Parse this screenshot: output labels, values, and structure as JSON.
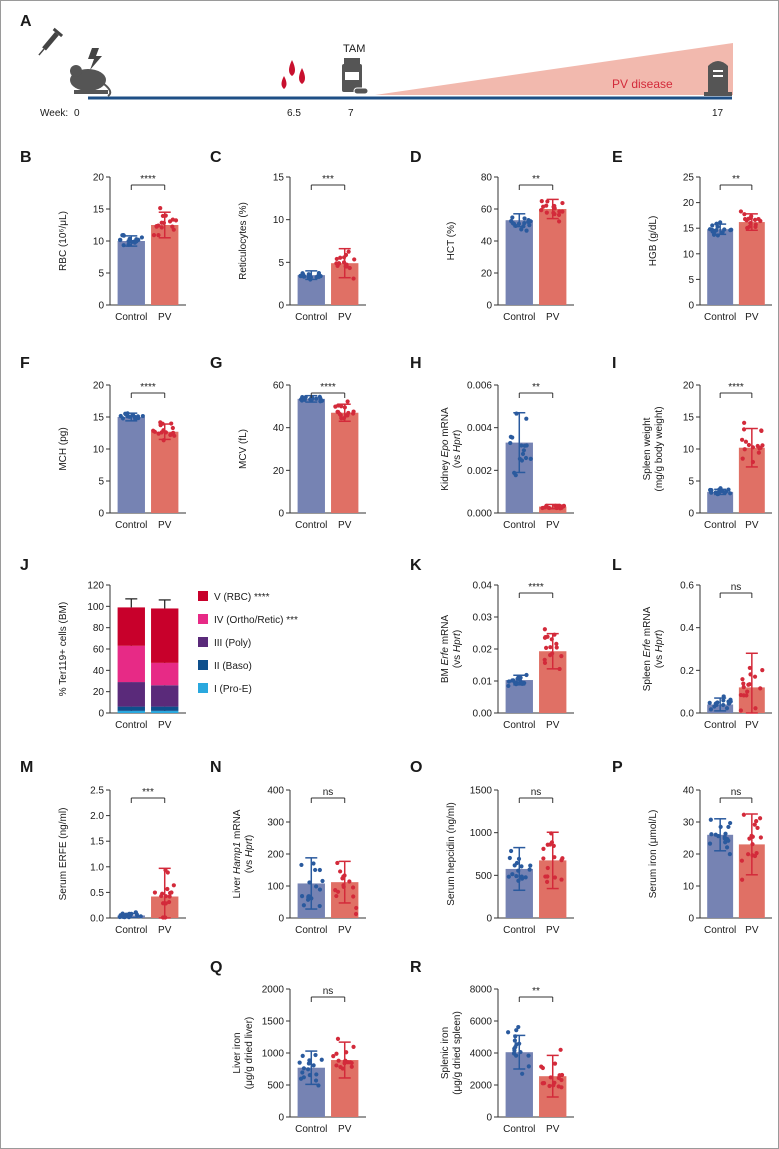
{
  "colors": {
    "control": "#7683b3",
    "pv": "#e07065",
    "control_dot": "#2a5a9e",
    "pv_dot": "#d32a3a",
    "axis": "#333333",
    "timeline": "#1e4f86",
    "wedge": "#f2b9ae",
    "stage_V": "#c8002b",
    "stage_IV": "#e72a86",
    "stage_III": "#5a2a7a",
    "stage_II": "#0e4f8c",
    "stage_I": "#2aa8de"
  },
  "timeline": {
    "label": "A",
    "week_prefix": "Week:",
    "weeks": [
      "0",
      "6.5",
      "7",
      "17"
    ],
    "tam_label": "TAM",
    "disease_label": "PV disease",
    "icons": [
      "syringe-icon",
      "mouse-icon",
      "lightning-icon",
      "blood-drops-icon",
      "pill-bottle-icon",
      "tombstone-icon"
    ]
  },
  "chart_data": [
    {
      "id": "B",
      "type": "bar",
      "categories": [
        "Control",
        "PV"
      ],
      "ylabel": "RBC (10⁶/μL)",
      "ylim": [
        0,
        20
      ],
      "yticks": [
        0,
        5,
        10,
        15,
        20
      ],
      "values": [
        10.0,
        12.5
      ],
      "errors": [
        0.8,
        2.0
      ],
      "significance": "****"
    },
    {
      "id": "C",
      "type": "bar",
      "categories": [
        "Control",
        "PV"
      ],
      "ylabel": "Reticulocytes (%)",
      "ylim": [
        0,
        15
      ],
      "yticks": [
        0,
        5,
        10,
        15
      ],
      "values": [
        3.5,
        4.9
      ],
      "errors": [
        0.5,
        1.7
      ],
      "significance": "***"
    },
    {
      "id": "D",
      "type": "bar",
      "categories": [
        "Control",
        "PV"
      ],
      "ylabel": "HCT (%)",
      "ylim": [
        0,
        80
      ],
      "yticks": [
        0,
        20,
        40,
        60,
        80
      ],
      "values": [
        53,
        60
      ],
      "errors": [
        4,
        6
      ],
      "significance": "**"
    },
    {
      "id": "E",
      "type": "bar",
      "categories": [
        "Control",
        "PV"
      ],
      "ylabel": "HGB (g/dL)",
      "ylim": [
        0,
        25
      ],
      "yticks": [
        0,
        5,
        10,
        15,
        20,
        25
      ],
      "values": [
        14.8,
        16.2
      ],
      "errors": [
        1.0,
        1.6
      ],
      "significance": "**"
    },
    {
      "id": "F",
      "type": "bar",
      "categories": [
        "Control",
        "PV"
      ],
      "ylabel": "MCH (pg)",
      "ylim": [
        0,
        20
      ],
      "yticks": [
        0,
        5,
        10,
        15,
        20
      ],
      "values": [
        15.0,
        12.7
      ],
      "errors": [
        0.6,
        1.2
      ],
      "significance": "****"
    },
    {
      "id": "G",
      "type": "bar",
      "categories": [
        "Control",
        "PV"
      ],
      "ylabel": "MCV (fL)",
      "ylim": [
        0,
        60
      ],
      "yticks": [
        0,
        20,
        40,
        60
      ],
      "values": [
        53.5,
        47
      ],
      "errors": [
        1.5,
        4
      ],
      "significance": "****"
    },
    {
      "id": "H",
      "type": "bar",
      "categories": [
        "Control",
        "PV"
      ],
      "ylabel": "Kidney Epo mRNA",
      "ylabel2": "(vs Hprt)",
      "ylim": [
        0,
        0.006
      ],
      "yticks": [
        0.0,
        0.002,
        0.004,
        0.006
      ],
      "tickfmt": 3,
      "values": [
        0.0033,
        0.0003
      ],
      "errors": [
        0.0014,
        0.0001
      ],
      "significance": "**"
    },
    {
      "id": "I",
      "type": "bar",
      "categories": [
        "Control",
        "PV"
      ],
      "ylabel": "Spleen weight",
      "ylabel2": "(mg/g body weight)",
      "ylim": [
        0,
        20
      ],
      "yticks": [
        0,
        5,
        10,
        15,
        20
      ],
      "values": [
        3.3,
        10.2
      ],
      "errors": [
        0.4,
        3.0
      ],
      "significance": "****"
    },
    {
      "id": "K",
      "type": "bar",
      "categories": [
        "Control",
        "PV"
      ],
      "ylabel": "BM Erfe mRNA",
      "ylabel2": "(vs Hprt)",
      "ylim": [
        0,
        0.04
      ],
      "yticks": [
        0.0,
        0.01,
        0.02,
        0.03,
        0.04
      ],
      "tickfmt": 2,
      "values": [
        0.0103,
        0.0193
      ],
      "errors": [
        0.0015,
        0.0055
      ],
      "significance": "****"
    },
    {
      "id": "L",
      "type": "bar",
      "categories": [
        "Control",
        "PV"
      ],
      "ylabel": "Spleen Erfe mRNA",
      "ylabel2": "(vs Hprt)",
      "ylim": [
        0,
        0.6
      ],
      "yticks": [
        0.0,
        0.2,
        0.4,
        0.6
      ],
      "tickfmt": 1,
      "values": [
        0.04,
        0.12
      ],
      "errors": [
        0.03,
        0.16
      ],
      "significance": "ns"
    },
    {
      "id": "M",
      "type": "bar",
      "categories": [
        "Control",
        "PV"
      ],
      "ylabel": "Serum ERFE (ng/ml)",
      "ylim": [
        0,
        2.5
      ],
      "yticks": [
        0.0,
        0.5,
        1.0,
        1.5,
        2.0,
        2.5
      ],
      "tickfmt": 1,
      "values": [
        0.05,
        0.42
      ],
      "errors": [
        0.04,
        0.55
      ],
      "significance": "***"
    },
    {
      "id": "N",
      "type": "bar",
      "categories": [
        "Control",
        "PV"
      ],
      "ylabel": "Liver Hamp1 mRNA",
      "ylabel2": "(vs Hprt)",
      "ylim": [
        0,
        400
      ],
      "yticks": [
        0,
        100,
        200,
        300,
        400
      ],
      "values": [
        108,
        112
      ],
      "errors": [
        80,
        65
      ],
      "significance": "ns"
    },
    {
      "id": "O",
      "type": "bar",
      "categories": [
        "Control",
        "PV"
      ],
      "ylabel": "Serum hepcidin (ng/ml)",
      "ylim": [
        0,
        1500
      ],
      "yticks": [
        0,
        500,
        1000,
        1500
      ],
      "values": [
        575,
        675
      ],
      "errors": [
        250,
        330
      ],
      "significance": "ns"
    },
    {
      "id": "P",
      "type": "bar",
      "categories": [
        "Control",
        "PV"
      ],
      "ylabel": "Serum iron (μmol/L)",
      "ylim": [
        0,
        40
      ],
      "yticks": [
        0,
        10,
        20,
        30,
        40
      ],
      "values": [
        26,
        23
      ],
      "errors": [
        5,
        9.5
      ],
      "significance": "ns"
    },
    {
      "id": "Q",
      "type": "bar",
      "categories": [
        "Control",
        "PV"
      ],
      "ylabel": "Liver iron",
      "ylabel2": "(μg/g dried liver)",
      "ylim": [
        0,
        2000
      ],
      "yticks": [
        0,
        500,
        1000,
        1500,
        2000
      ],
      "values": [
        770,
        890
      ],
      "errors": [
        260,
        280
      ],
      "significance": "ns"
    },
    {
      "id": "R",
      "type": "bar",
      "categories": [
        "Control",
        "PV"
      ],
      "ylabel": "Splenic iron",
      "ylabel2": "(μg/g dried spleen)",
      "ylim": [
        0,
        8000
      ],
      "yticks": [
        0,
        2000,
        4000,
        6000,
        8000
      ],
      "values": [
        4050,
        2550
      ],
      "errors": [
        1050,
        1300
      ],
      "significance": "**"
    },
    {
      "id": "J",
      "type": "stacked-bar",
      "categories": [
        "Control",
        "PV"
      ],
      "ylabel": "% Ter119+ cells (BM)",
      "ylim": [
        0,
        120
      ],
      "yticks": [
        0,
        20,
        40,
        60,
        80,
        100,
        120
      ],
      "series": [
        {
          "name": "I (Pro-E)",
          "values": [
            2,
            2
          ],
          "errors": [
            1,
            1
          ]
        },
        {
          "name": "II (Baso)",
          "values": [
            4,
            4
          ],
          "errors": [
            2,
            2
          ]
        },
        {
          "name": "III (Poly)",
          "values": [
            23,
            20
          ],
          "errors": [
            3,
            5
          ]
        },
        {
          "name": "IV (Ortho/Retic) ***",
          "values": [
            34,
            21
          ],
          "errors": [
            5,
            5
          ]
        },
        {
          "name": "V (RBC) ****",
          "values": [
            36,
            51
          ],
          "errors": [
            8,
            8
          ]
        }
      ],
      "legend_order": [
        "V (RBC) ****",
        "IV (Ortho/Retic) ***",
        "III (Poly)",
        "II (Baso)",
        "I (Pro-E)"
      ]
    }
  ]
}
